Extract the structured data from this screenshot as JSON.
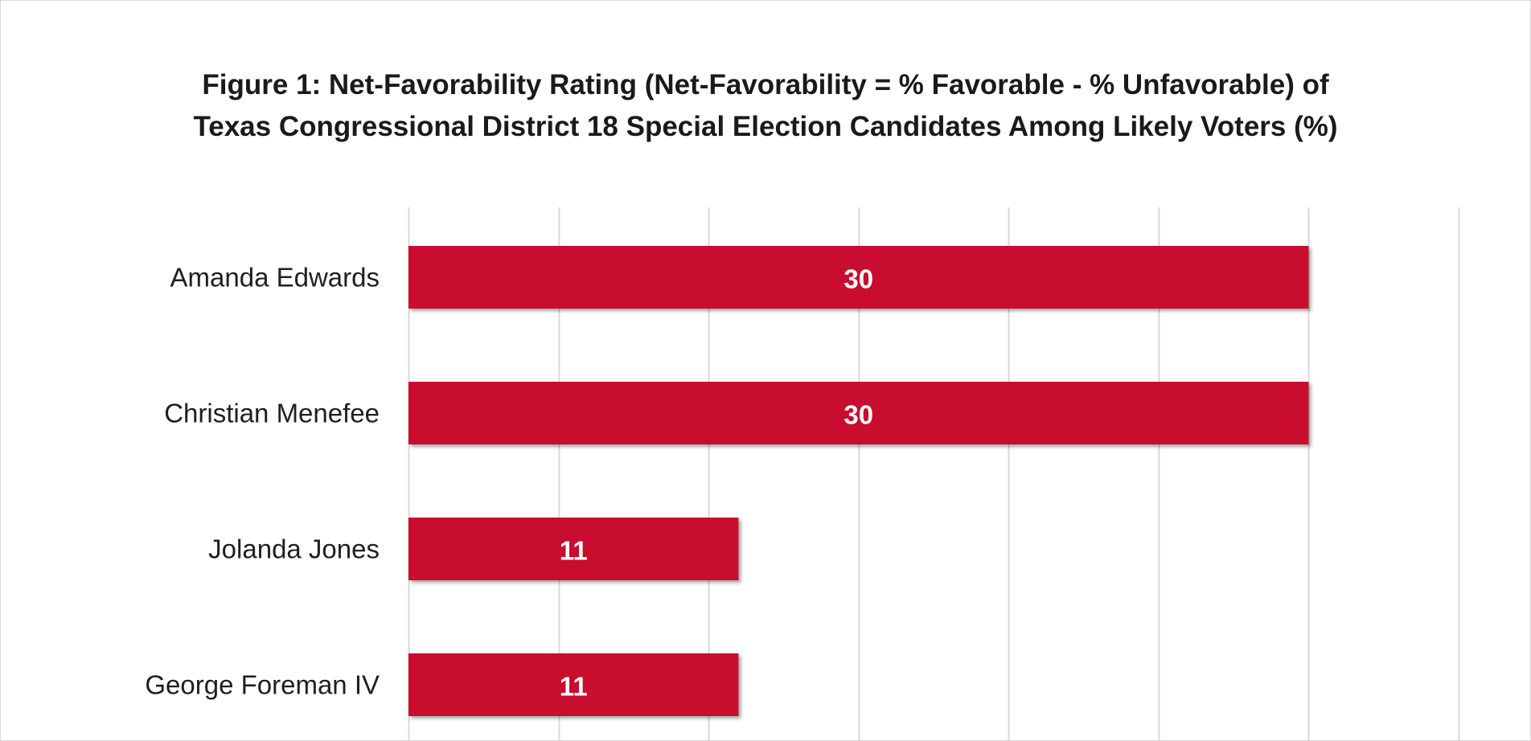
{
  "chart_data": {
    "type": "bar",
    "orientation": "horizontal",
    "title_lines": [
      "Figure 1: Net-Favorability Rating (Net-Favorability = % Favorable - % Unfavorable)  of",
      "Texas Congressional District 18 Special Election Candidates Among Likely Voters (%)"
    ],
    "categories": [
      "Amanda Edwards",
      "Christian Menefee",
      "Jolanda Jones",
      "George Foreman IV"
    ],
    "values": [
      30,
      30,
      11,
      11
    ],
    "data_labels": [
      "30",
      "30",
      "11",
      "11"
    ],
    "xlim": [
      0,
      35
    ],
    "x_grid_step": 5,
    "grid": true,
    "bar_color": "#c8102e",
    "grid_color": "#d9d9d9"
  }
}
